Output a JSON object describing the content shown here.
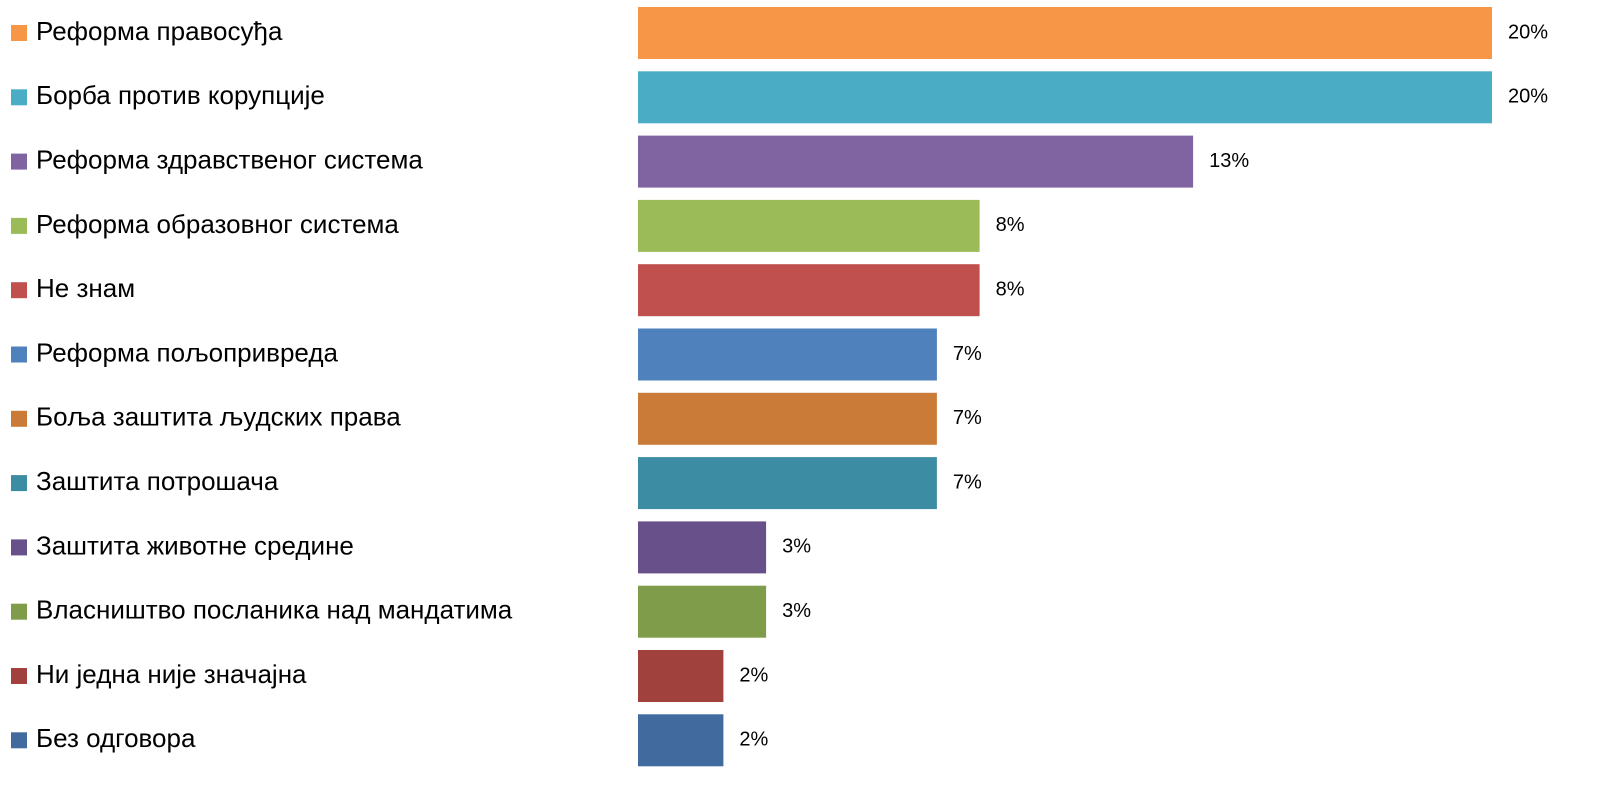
{
  "chart_data": {
    "type": "bar",
    "orientation": "horizontal",
    "categories": [
      "Реформа правосуђа",
      "Борба против корупције",
      "Реформа здравственог система",
      "Реформа образовног система",
      "Не знам",
      "Реформа пољопривреда",
      "Боља заштита људских права",
      "Заштита потрошача",
      "Заштита животне средине",
      "Власништво посланика над мандатима",
      "Ни једна није значајна",
      "Без одговора"
    ],
    "values": [
      20,
      20,
      13,
      8,
      8,
      7,
      7,
      7,
      3,
      3,
      2,
      2
    ],
    "value_labels": [
      "20%",
      "20%",
      "13%",
      "8%",
      "8%",
      "7%",
      "7%",
      "7%",
      "3%",
      "3%",
      "2%",
      "2%"
    ],
    "colors": [
      "#f79646",
      "#4bacc6",
      "#8064a2",
      "#9bbb59",
      "#c0504d",
      "#4f81bd",
      "#cb7b38",
      "#3c8da3",
      "#68518a",
      "#7e9c4a",
      "#a0413e",
      "#416b9e"
    ]
  }
}
